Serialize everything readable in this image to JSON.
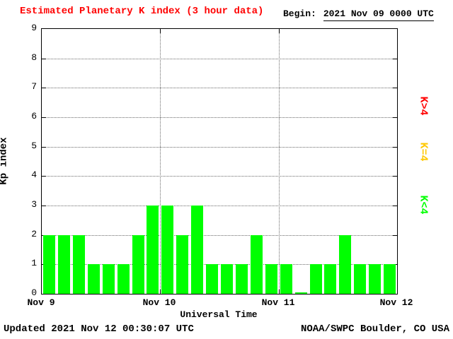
{
  "header": {
    "title": "Estimated Planetary K index (3 hour data)",
    "begin_label": "Begin:",
    "begin_value": "2021 Nov 09 0000 UTC"
  },
  "footer": {
    "updated": "Updated 2021 Nov 12 00:30:07 UTC",
    "source": "NOAA/SWPC Boulder, CO USA"
  },
  "colors": {
    "bar": "#00ff00",
    "title": "#ff0000",
    "k_gt4": "#ff0000",
    "k_eq4": "#ffc800",
    "k_lt4": "#00ff00"
  },
  "legend": [
    {
      "label": "K>4",
      "color": "#ff0000"
    },
    {
      "label": "K=4",
      "color": "#ffc800"
    },
    {
      "label": "K<4",
      "color": "#00ff00"
    }
  ],
  "chart_data": {
    "type": "bar",
    "title": "Estimated Planetary K index (3 hour data)",
    "xlabel": "Universal Time",
    "ylabel": "Kp index",
    "ylim": [
      0,
      9
    ],
    "y_ticks": [
      0,
      1,
      2,
      3,
      4,
      5,
      6,
      7,
      8,
      9
    ],
    "x_ticks": [
      "Nov 9",
      "Nov 10",
      "Nov 11",
      "Nov 12"
    ],
    "interval_hours": 3,
    "bars_per_day": 8,
    "values": [
      2,
      2,
      2,
      1,
      1,
      1,
      2,
      3,
      3,
      2,
      3,
      1,
      1,
      1,
      2,
      1,
      1,
      0,
      1,
      1,
      2,
      1,
      1,
      1
    ]
  }
}
